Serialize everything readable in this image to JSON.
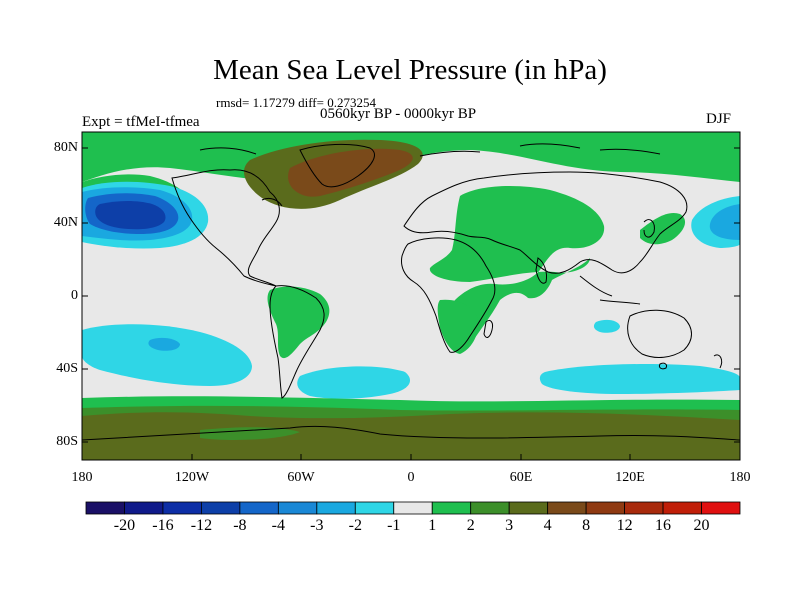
{
  "header": {
    "title": "Mean Sea Level Pressure (in hPa)",
    "stats": "rmsd= 1.17279 diff= 0.273254",
    "period": "0560kyr BP - 0000kyr BP",
    "experiment": "Expt = tfMeI-tfmea",
    "season": "DJF"
  },
  "map": {
    "lat_labels": [
      "80N",
      "40N",
      "0",
      "40S",
      "80S"
    ],
    "lon_labels": [
      "180",
      "120W",
      "60W",
      "0",
      "60E",
      "120E",
      "180"
    ],
    "lon_range": [
      -180,
      180
    ],
    "lat_range": [
      -90,
      90
    ],
    "fill_colors": {
      "neutral": "#e8e8e8",
      "light_green": "#1fbf4f",
      "mid_green": "#3c8f2a",
      "olive": "#5a6b1c",
      "brown": "#7a4a1a",
      "cyan": "#2fd6e6",
      "light_blue": "#1aa8e0",
      "blue": "#1466c9",
      "dark_blue": "#0d3fa8"
    }
  },
  "colorbar": {
    "labels": [
      "-20",
      "-16",
      "-12",
      "-8",
      "-4",
      "-3",
      "-2",
      "-1",
      "1",
      "2",
      "3",
      "4",
      "8",
      "12",
      "16",
      "20"
    ],
    "colors": [
      "#1a1066",
      "#101a8a",
      "#0d2ea6",
      "#0d3fa8",
      "#1466c9",
      "#1a88d6",
      "#1aa8e0",
      "#2fd6e6",
      "#e8e8e8",
      "#1fbf4f",
      "#3c8f2a",
      "#5a6b1c",
      "#7a4a1a",
      "#8f3a12",
      "#a82a0c",
      "#c01e08",
      "#e01010"
    ]
  }
}
